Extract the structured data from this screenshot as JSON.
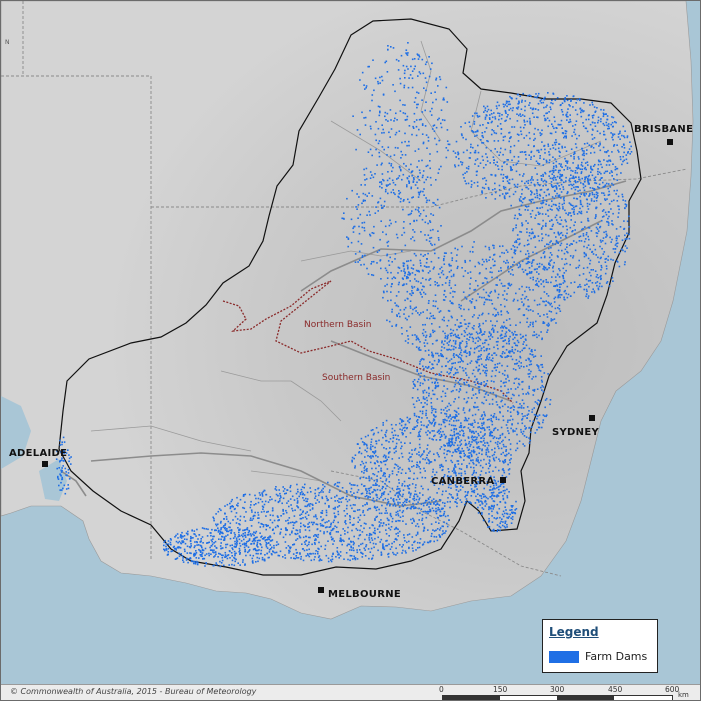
{
  "map": {
    "cities": [
      {
        "name": "BRISBANE"
      },
      {
        "name": "SYDNEY"
      },
      {
        "name": "CANBERRA"
      },
      {
        "name": "ADELAIDE"
      },
      {
        "name": "MELBOURNE"
      }
    ],
    "basins": {
      "northern": "Northern Basin",
      "southern": "Southern Basin"
    },
    "colors": {
      "sea": "#a9c6d6",
      "land": "#cdcdcd",
      "basin_outline": "#111111",
      "farm_dams": "#1f6fe5",
      "basin_divide": "#8a2a2a",
      "rivers": "#8c8c8c"
    }
  },
  "legend": {
    "title": "Legend",
    "items": [
      {
        "label": "Farm Dams",
        "color": "#1f6fe5"
      }
    ]
  },
  "footer": {
    "copyright": "© Commonwealth of Australia, 2015 - Bureau of Meteorology",
    "scale": {
      "ticks": [
        "0",
        "150",
        "300",
        "450",
        "600"
      ],
      "unit": "km"
    }
  }
}
